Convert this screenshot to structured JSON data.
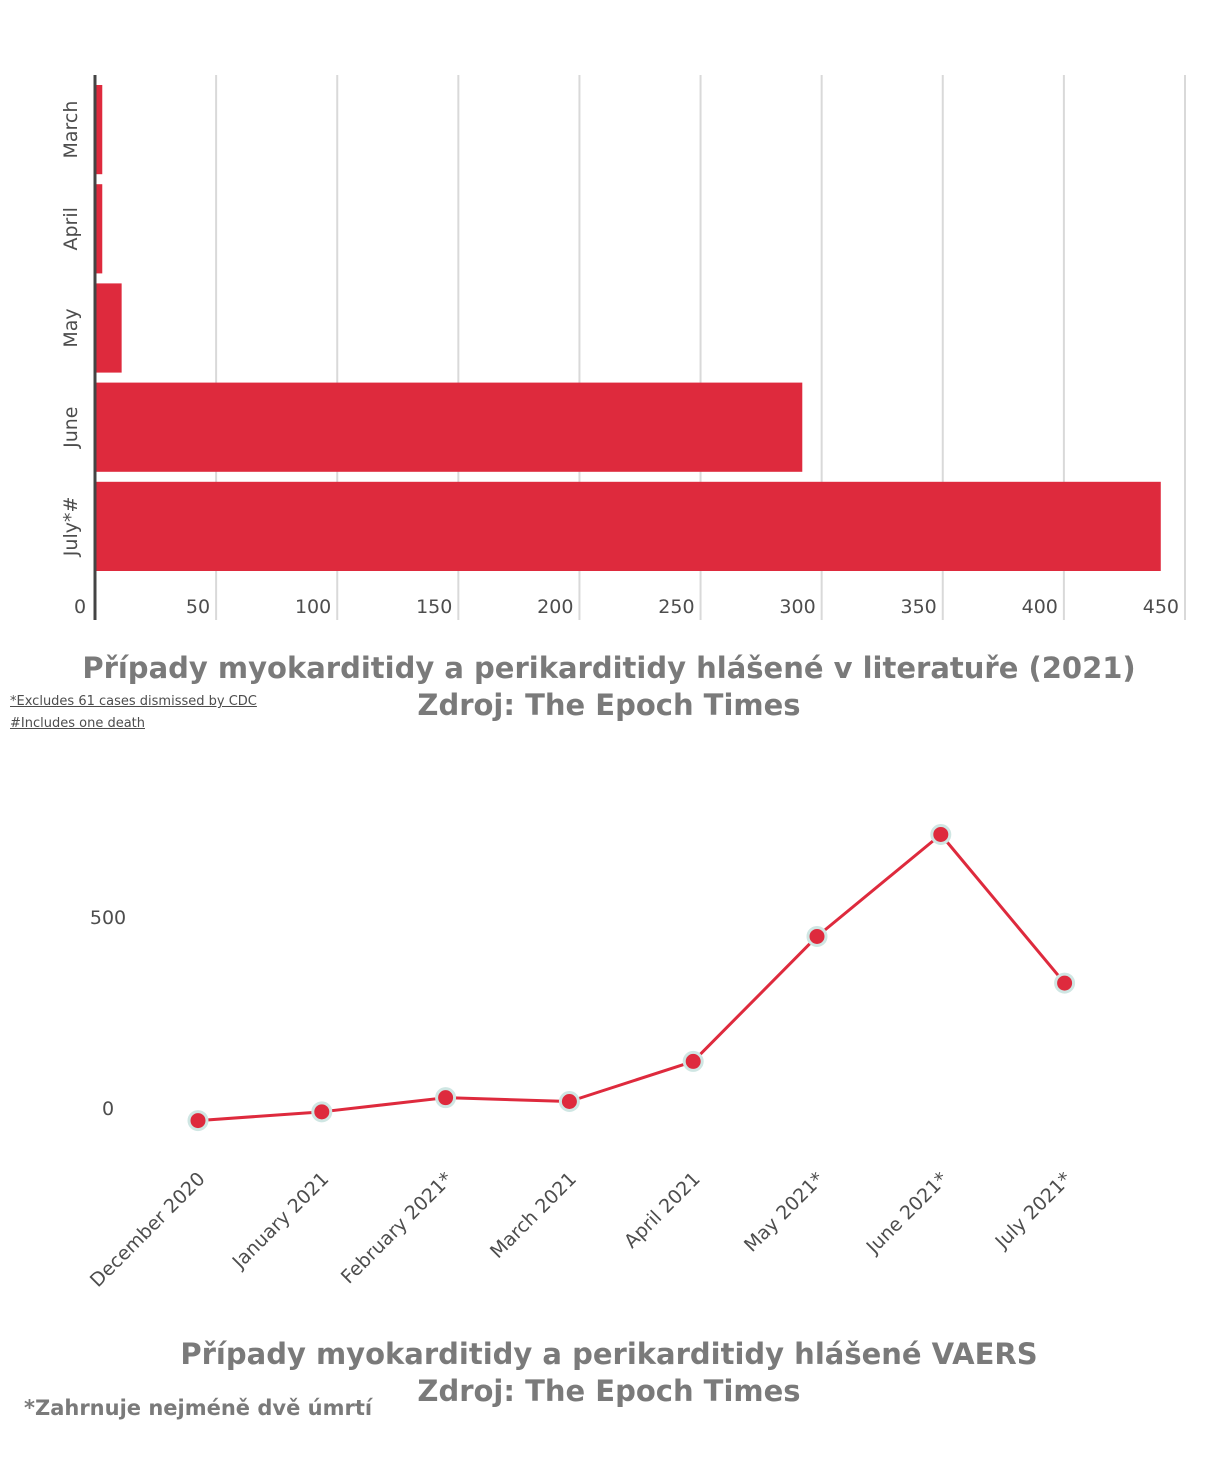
{
  "colors": {
    "accent": "#de2a3d",
    "grid": "#d9d9d9",
    "marker_outline": "#cfe6e3",
    "text": "#4d4d4d",
    "title": "#7a7a7a"
  },
  "chart_data": [
    {
      "type": "bar",
      "orientation": "horizontal",
      "categories": [
        "March",
        "April",
        "May",
        "June",
        "July*#"
      ],
      "values": [
        3,
        3,
        11,
        292,
        440
      ],
      "xlim": [
        0,
        450
      ],
      "x_ticks": [
        "0",
        "50",
        "100",
        "150",
        "200",
        "250",
        "300",
        "350",
        "400",
        "450"
      ],
      "grid": true,
      "title_lines": [
        "Případy myokarditidy a perikarditidy hlášené v literatuře (2021)",
        "Zdroj: The Epoch Times"
      ],
      "notes": [
        "*Excludes 61 cases dismissed by CDC",
        "#Includes one death"
      ]
    },
    {
      "type": "line",
      "categories": [
        "December 2020",
        "January 2021",
        "February 2021*",
        "March 2021",
        "April 2021",
        "May 2021*",
        "June 2021*",
        "July 2021*"
      ],
      "values": [
        -33,
        -10,
        27,
        17,
        122,
        449,
        716,
        327
      ],
      "y_ticks": [
        0,
        500
      ],
      "grid": false,
      "title_lines": [
        "Případy myokarditidy a perikarditidy hlášené VAERS",
        "Zdroj: The Epoch Times"
      ],
      "note": "*Zahrnuje nejméně dvě úmrtí"
    }
  ]
}
